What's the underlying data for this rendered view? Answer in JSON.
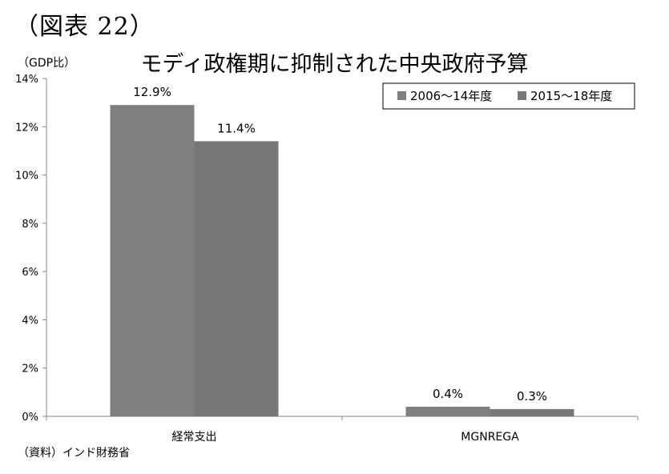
{
  "figure_label": "（図表 22）",
  "unit_label": "（GDP比）",
  "source_label": "（資料）インド財務省",
  "chart_data": {
    "type": "bar",
    "title": "モディ政権期に抑制された中央政府予算",
    "categories": [
      "経常支出",
      "MGNREGA"
    ],
    "series": [
      {
        "name": "2006～14年度",
        "values": [
          12.9,
          0.4
        ],
        "labels": [
          "12.9%",
          "0.4%"
        ],
        "color": "#808080"
      },
      {
        "name": "2015～18年度",
        "values": [
          11.4,
          0.3
        ],
        "labels": [
          "11.4%",
          "0.3%"
        ],
        "color": "#777777"
      }
    ],
    "ylim": [
      0,
      14
    ],
    "yticks": [
      0,
      2,
      4,
      6,
      8,
      10,
      12,
      14
    ],
    "ytick_labels": [
      "0%",
      "2%",
      "4%",
      "6%",
      "8%",
      "10%",
      "12%",
      "14%"
    ],
    "grid": false,
    "legend_position": "top-right"
  }
}
